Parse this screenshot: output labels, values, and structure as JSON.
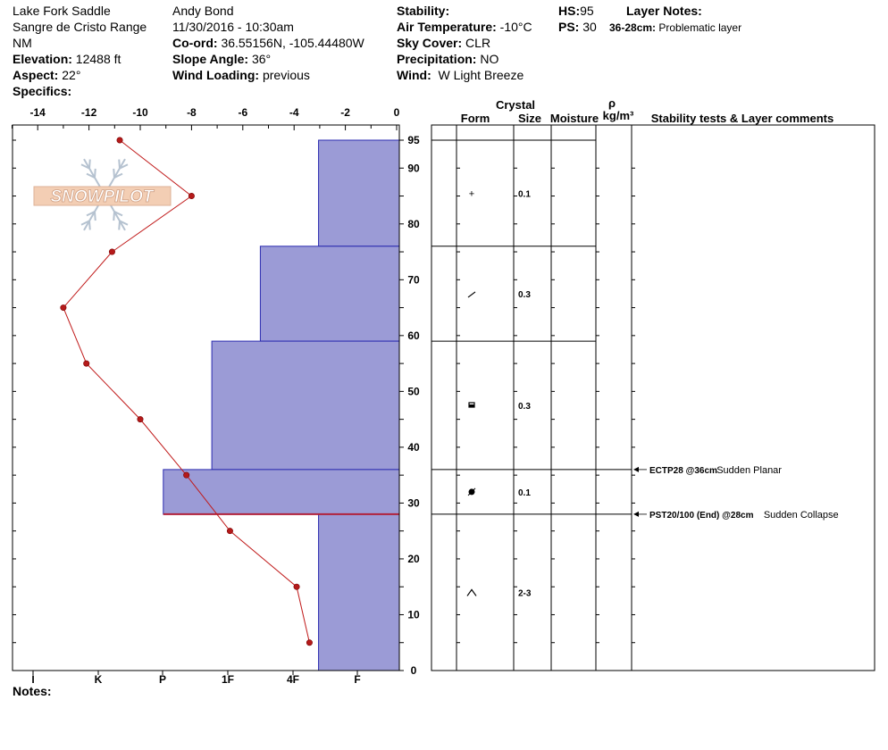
{
  "header": {
    "location": "Lake Fork Saddle",
    "range": "Sangre de Cristo Range",
    "state": "NM",
    "elevation_label": "Elevation:",
    "elevation": "12488 ft",
    "aspect_label": "Aspect:",
    "aspect": "22°",
    "specifics_label": "Specifics:",
    "observer": "Andy Bond",
    "datetime": "11/30/2016 - 10:30am",
    "coord_label": "Co-ord:",
    "coord": "36.55156N, -105.44480W",
    "slope_label": "Slope Angle:",
    "slope": "36°",
    "wind_loading_label": "Wind Loading:",
    "wind_loading": "previous",
    "stability_label": "Stability:",
    "air_temp_label": "Air Temperature:",
    "air_temp": "-10°C",
    "sky_label": "Sky Cover:",
    "sky": "CLR",
    "precip_label": "Precipitation:",
    "precip": "NO",
    "wind_label": "Wind:",
    "wind": "W Light Breeze",
    "hs_label": "HS:",
    "hs": "95",
    "ps_label": "PS:",
    "ps": "30",
    "layer_notes_label": "Layer Notes:",
    "layer_note_range": "36-28cm:",
    "layer_note_text": "Problematic layer",
    "notes_label": "Notes:"
  },
  "watermark": "SNOWPILOT",
  "table_headers": {
    "crystal": "Crystal",
    "form": "Form",
    "size": "Size",
    "moisture": "Moisture",
    "rho": "ρ",
    "density_unit": "kg/m³",
    "comments": "Stability tests & Layer comments"
  },
  "chart_data": {
    "type": "snow-profile",
    "height_axis": {
      "range": [
        0,
        95
      ],
      "ticks": [
        0,
        10,
        20,
        30,
        40,
        50,
        60,
        70,
        80,
        90,
        95
      ]
    },
    "temperature_axis": {
      "range": [
        -15,
        0
      ],
      "ticks": [
        -14,
        -12,
        -10,
        -8,
        -6,
        -4,
        -2,
        0
      ]
    },
    "hardness_axis": {
      "labels": [
        "I",
        "K",
        "P",
        "1F",
        "4F",
        "F"
      ]
    },
    "temperature_profile": [
      {
        "depth": 95,
        "temp": -10.8
      },
      {
        "depth": 85,
        "temp": -8.0
      },
      {
        "depth": 75,
        "temp": -11.1
      },
      {
        "depth": 65,
        "temp": -13.0
      },
      {
        "depth": 55,
        "temp": -12.1
      },
      {
        "depth": 45,
        "temp": -10.0
      },
      {
        "depth": 35,
        "temp": -8.2
      },
      {
        "depth": 25,
        "temp": -6.5
      },
      {
        "depth": 15,
        "temp": -3.9
      },
      {
        "depth": 5,
        "temp": -3.4
      }
    ],
    "hardness_layers": [
      {
        "top": 95,
        "bottom": 76,
        "hardness_index": 0.8
      },
      {
        "top": 76,
        "bottom": 59,
        "hardness_index": 2.0
      },
      {
        "top": 59,
        "bottom": 36,
        "hardness_index": 3.0
      },
      {
        "top": 36,
        "bottom": 28,
        "hardness_index": 4.0
      },
      {
        "top": 28,
        "bottom": 0,
        "hardness_index": 0.8
      }
    ],
    "weak_layer_depth": 28,
    "crystal_layers": [
      {
        "top": 95,
        "bottom": 76,
        "form": "+",
        "size": "0.1"
      },
      {
        "top": 76,
        "bottom": 59,
        "form": "/",
        "size": "0.3"
      },
      {
        "top": 59,
        "bottom": 36,
        "form": "□",
        "size": "0.3"
      },
      {
        "top": 36,
        "bottom": 28,
        "form": "●",
        "size": "0.1"
      },
      {
        "top": 28,
        "bottom": 0,
        "form": "^",
        "size": "2-3"
      }
    ],
    "stability_tests": [
      {
        "depth": 36,
        "label": "ECTP28 @36cm",
        "comment": "Sudden Planar"
      },
      {
        "depth": 28,
        "label": "PST20/100 (End) @28cm",
        "comment": "Sudden Collapse"
      }
    ]
  }
}
